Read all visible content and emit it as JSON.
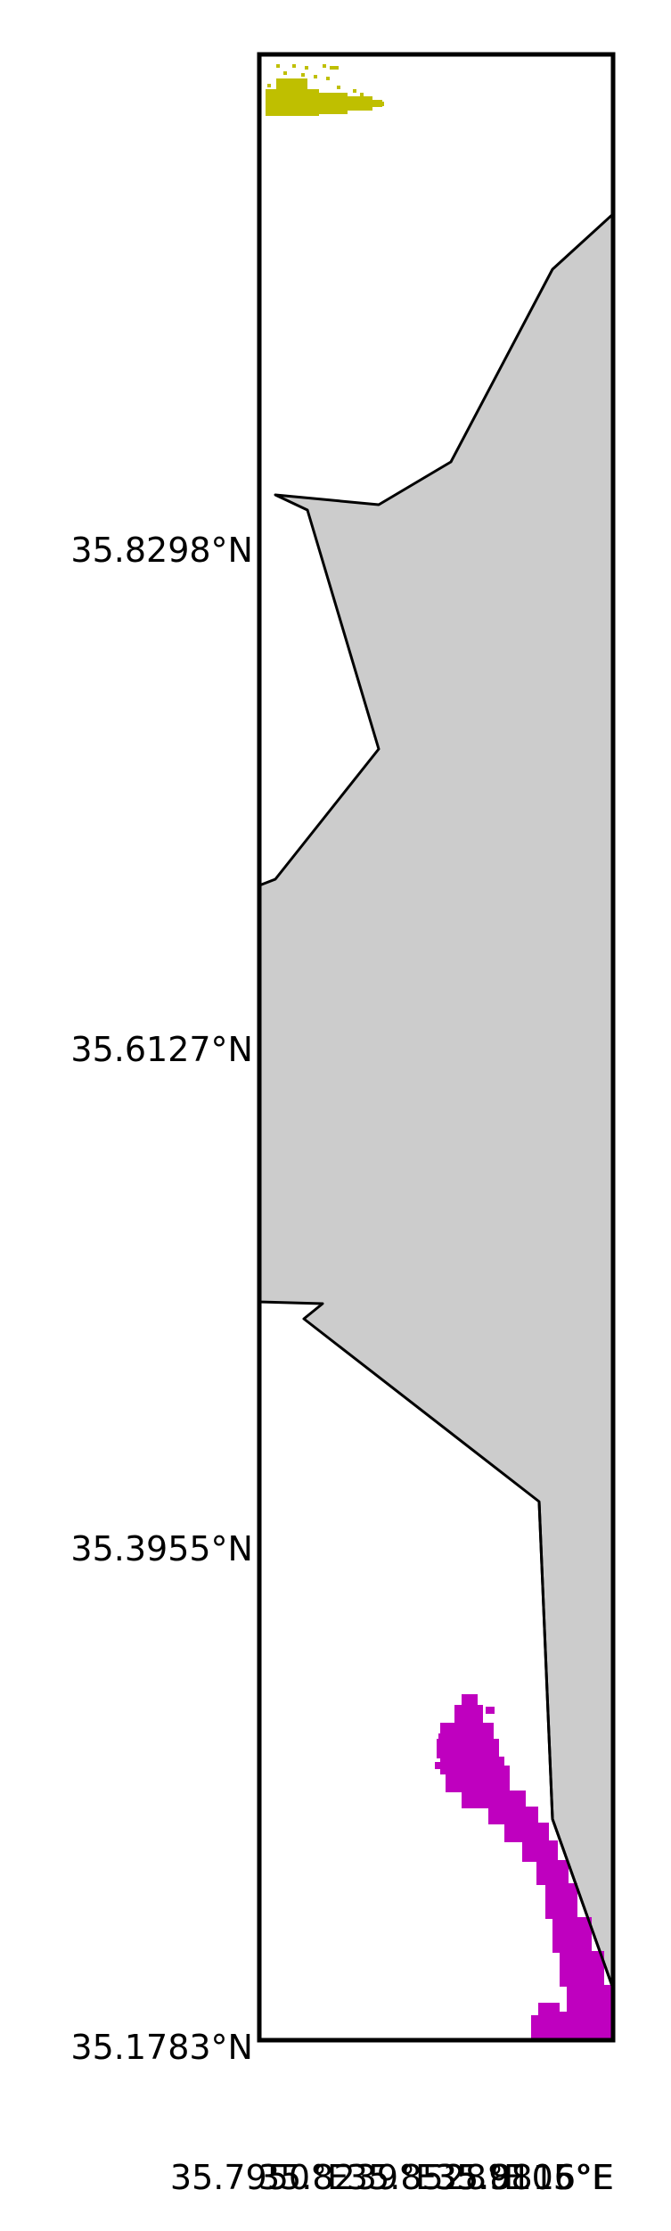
{
  "map": {
    "lat_ticks": [
      "35.8298°N",
      "35.6127°N",
      "35.3955°N",
      "35.1783°N"
    ],
    "lon_ticks": [
      "35.7950°E",
      "35.8239°E",
      "35.8528°E",
      "35.8816°E",
      "35.9105°E"
    ],
    "colors": {
      "land": "#cccccc",
      "coastline": "#000000",
      "frame": "#000000",
      "cluster_north": "#bfbf00",
      "cluster_south": "#bf00bf"
    }
  }
}
